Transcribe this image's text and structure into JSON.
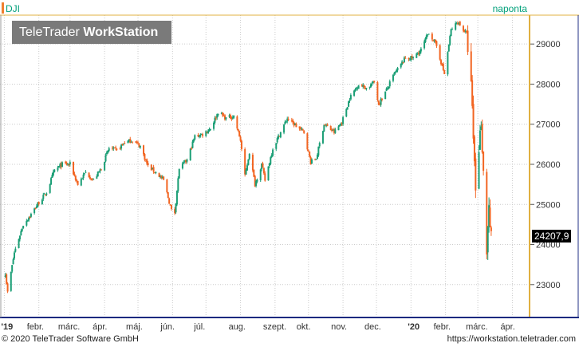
{
  "ticker": "DJI",
  "period": "naponta",
  "logo": {
    "brand_regular": "TeleTrader ",
    "brand_bold": "WorkStation"
  },
  "last_value_label": "24207,9",
  "footer": {
    "copyright": "© 2020 TeleTrader Software GmbH",
    "url": "https://workstation.teletrader.com"
  },
  "colors": {
    "up": "#1a9e75",
    "down": "#f26522",
    "grid": "#cccccc",
    "axis": "#e0b040",
    "accent": "#00a07a"
  },
  "chart_data": {
    "type": "candlestick",
    "ylim": [
      22200,
      29700
    ],
    "y_ticks": [
      {
        "value": 23000,
        "label": "23000"
      },
      {
        "value": 24000,
        "label": "24000"
      },
      {
        "value": 25000,
        "label": "25000"
      },
      {
        "value": 26000,
        "label": "26000"
      },
      {
        "value": 27000,
        "label": "27000"
      },
      {
        "value": 28000,
        "label": "28000"
      },
      {
        "value": 29000,
        "label": "29000"
      }
    ],
    "x_ticks": [
      {
        "date": "2019-01-01",
        "label": "'19"
      },
      {
        "date": "2019-02-01",
        "label": "febr."
      },
      {
        "date": "2019-03-01",
        "label": "márc."
      },
      {
        "date": "2019-04-01",
        "label": "ápr."
      },
      {
        "date": "2019-05-01",
        "label": "máj."
      },
      {
        "date": "2019-06-01",
        "label": "jún."
      },
      {
        "date": "2019-07-01",
        "label": "júl."
      },
      {
        "date": "2019-08-01",
        "label": "aug."
      },
      {
        "date": "2019-09-01",
        "label": "szept."
      },
      {
        "date": "2019-10-01",
        "label": "okt."
      },
      {
        "date": "2019-11-01",
        "label": "nov."
      },
      {
        "date": "2019-12-01",
        "label": "dec."
      },
      {
        "date": "2020-01-01",
        "label": "'20"
      },
      {
        "date": "2020-02-01",
        "label": "febr."
      },
      {
        "date": "2020-03-01",
        "label": "márc."
      },
      {
        "date": "2020-04-01",
        "label": "ápr."
      }
    ],
    "x_range": [
      "2018-12-31",
      "2020-04-15"
    ],
    "last_value": 24207.9,
    "path": [
      [
        "2019-01-02",
        23300
      ],
      [
        "2019-01-04",
        22800
      ],
      [
        "2019-01-10",
        23800
      ],
      [
        "2019-01-18",
        24500
      ],
      [
        "2019-01-25",
        24750
      ],
      [
        "2019-02-01",
        25050
      ],
      [
        "2019-02-08",
        25300
      ],
      [
        "2019-02-15",
        25850
      ],
      [
        "2019-02-22",
        26000
      ],
      [
        "2019-03-01",
        26000
      ],
      [
        "2019-03-08",
        25500
      ],
      [
        "2019-03-15",
        25800
      ],
      [
        "2019-03-22",
        25600
      ],
      [
        "2019-03-29",
        25900
      ],
      [
        "2019-04-05",
        26400
      ],
      [
        "2019-04-12",
        26350
      ],
      [
        "2019-04-19",
        26550
      ],
      [
        "2019-04-26",
        26600
      ],
      [
        "2019-05-03",
        26450
      ],
      [
        "2019-05-10",
        25950
      ],
      [
        "2019-05-17",
        25800
      ],
      [
        "2019-05-24",
        25600
      ],
      [
        "2019-05-31",
        24850
      ],
      [
        "2019-06-03",
        24800
      ],
      [
        "2019-06-07",
        25900
      ],
      [
        "2019-06-14",
        26100
      ],
      [
        "2019-06-21",
        26700
      ],
      [
        "2019-06-28",
        26750
      ],
      [
        "2019-07-05",
        26900
      ],
      [
        "2019-07-12",
        27300
      ],
      [
        "2019-07-19",
        27150
      ],
      [
        "2019-07-26",
        27200
      ],
      [
        "2019-08-01",
        26600
      ],
      [
        "2019-08-05",
        25700
      ],
      [
        "2019-08-09",
        26300
      ],
      [
        "2019-08-14",
        25500
      ],
      [
        "2019-08-20",
        26000
      ],
      [
        "2019-08-23",
        25600
      ],
      [
        "2019-08-30",
        26400
      ],
      [
        "2019-09-06",
        26800
      ],
      [
        "2019-09-12",
        27150
      ],
      [
        "2019-09-20",
        26950
      ],
      [
        "2019-09-27",
        26800
      ],
      [
        "2019-10-03",
        26050
      ],
      [
        "2019-10-08",
        26150
      ],
      [
        "2019-10-15",
        27000
      ],
      [
        "2019-10-24",
        26800
      ],
      [
        "2019-10-31",
        27050
      ],
      [
        "2019-11-07",
        27650
      ],
      [
        "2019-11-15",
        28000
      ],
      [
        "2019-11-22",
        27900
      ],
      [
        "2019-11-29",
        28050
      ],
      [
        "2019-12-03",
        27500
      ],
      [
        "2019-12-10",
        27850
      ],
      [
        "2019-12-17",
        28250
      ],
      [
        "2019-12-27",
        28650
      ],
      [
        "2020-01-03",
        28650
      ],
      [
        "2020-01-10",
        28850
      ],
      [
        "2020-01-17",
        29300
      ],
      [
        "2020-01-24",
        28950
      ],
      [
        "2020-01-31",
        28250
      ],
      [
        "2020-02-06",
        29350
      ],
      [
        "2020-02-12",
        29550
      ],
      [
        "2020-02-20",
        29250
      ],
      [
        "2020-02-24",
        27950
      ],
      [
        "2020-02-28",
        25400
      ],
      [
        "2020-03-04",
        27100
      ],
      [
        "2020-03-09",
        23850
      ],
      [
        "2020-03-11",
        25000
      ],
      [
        "2020-03-12",
        24300
      ],
      [
        "2020-03-13",
        24207.9
      ]
    ]
  }
}
